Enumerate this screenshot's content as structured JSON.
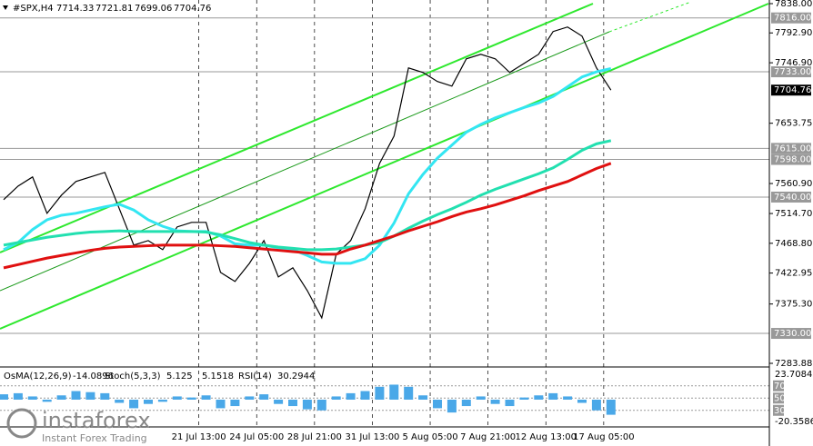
{
  "chart_data": {
    "type": "line",
    "symbol": "#SPX,H4",
    "ohlc": [
      7714.33,
      7721.81,
      7699.06,
      7704.76
    ],
    "ylim": [
      7283.88,
      7838.0
    ],
    "yticks": [
      {
        "value": 7838.0,
        "label": "7838.00"
      },
      {
        "value": 7792.9,
        "label": "7792.90"
      },
      {
        "value": 7746.9,
        "label": "7746.90"
      },
      {
        "value": 7653.75,
        "label": "7653.75"
      },
      {
        "value": 7560.9,
        "label": "7560.90"
      },
      {
        "value": 7514.7,
        "label": "7514.70"
      },
      {
        "value": 7468.8,
        "label": "7468.80"
      },
      {
        "value": 7422.95,
        "label": "7422.95"
      },
      {
        "value": 7375.3,
        "label": "7375.30"
      },
      {
        "value": 7283.88,
        "label": "7283.88"
      }
    ],
    "levels": [
      {
        "value": 7816.0,
        "label": "7816.00"
      },
      {
        "value": 7733.0,
        "label": "7733.00"
      },
      {
        "value": 7615.0,
        "label": "7615.00"
      },
      {
        "value": 7598.0,
        "label": "7598.00"
      },
      {
        "value": 7540.0,
        "label": "7540.00"
      },
      {
        "value": 7330.0,
        "label": "7330.00"
      }
    ],
    "xticks": [
      {
        "value": 13.5,
        "label": "21 Jul 13:00"
      },
      {
        "value": 17.5,
        "label": "24 Jul 05:00"
      },
      {
        "value": 21.5,
        "label": "28 Jul 21:00"
      },
      {
        "value": 25.5,
        "label": "31 Jul 13:00"
      },
      {
        "value": 29.5,
        "label": "5 Aug 05:00"
      },
      {
        "value": 33.5,
        "label": "7 Aug 21:00"
      },
      {
        "value": 37.5,
        "label": "12 Aug 13:00"
      },
      {
        "value": 41.5,
        "label": "17 Aug 05:00"
      }
    ],
    "series": [
      {
        "color": "#000000",
        "values": [
          7536,
          7557,
          7571,
          7515,
          7543,
          7564,
          7571,
          7578,
          7522,
          7466,
          7473,
          7459,
          7494,
          7501,
          7501,
          7424,
          7410,
          7438,
          7473,
          7417,
          7431,
          7396,
          7354,
          7452,
          7473,
          7522,
          7592,
          7634,
          7739,
          7732,
          7718,
          7711,
          7753,
          7760,
          7753,
          7732,
          7746,
          7760,
          7795,
          7802,
          7788,
          7739,
          7704.76
        ]
      },
      {
        "color": "#33e6f2",
        "values": [
          7459,
          7470,
          7490,
          7505,
          7512,
          7515,
          7520,
          7525,
          7529,
          7520,
          7505,
          7495,
          7488,
          7487,
          7487,
          7480,
          7468,
          7466,
          7466,
          7462,
          7459,
          7450,
          7440,
          7438,
          7438,
          7445,
          7466,
          7500,
          7545,
          7575,
          7600,
          7620,
          7640,
          7652,
          7662,
          7670,
          7678,
          7685,
          7695,
          7710,
          7725,
          7733,
          7738
        ]
      },
      {
        "color": "#22e0b0",
        "values": [
          7466,
          7470,
          7474,
          7478,
          7481,
          7484,
          7486,
          7487,
          7488,
          7487,
          7487,
          7487,
          7487,
          7487,
          7486,
          7482,
          7476,
          7470,
          7466,
          7463,
          7461,
          7459,
          7459,
          7460,
          7463,
          7466,
          7470,
          7480,
          7492,
          7503,
          7513,
          7522,
          7532,
          7543,
          7552,
          7560,
          7568,
          7576,
          7585,
          7598,
          7612,
          7622,
          7627
        ]
      },
      {
        "color": "#e01010",
        "values": [
          7431,
          7436,
          7441,
          7446,
          7450,
          7454,
          7458,
          7461,
          7463,
          7464,
          7465,
          7466,
          7466,
          7466,
          7466,
          7465,
          7464,
          7462,
          7460,
          7458,
          7456,
          7454,
          7452,
          7452,
          7460,
          7466,
          7473,
          7480,
          7488,
          7495,
          7502,
          7510,
          7517,
          7522,
          7528,
          7535,
          7542,
          7550,
          7557,
          7564,
          7574,
          7584,
          7592
        ]
      }
    ],
    "oscillator": {
      "osma_label": "OsMA(12,26,9)",
      "osma_value": -14.0896,
      "stoch_label": "Stoch(5,3,3)",
      "stoch_values": [
        5.125,
        5.1518
      ],
      "rsi_label": "RSI(14)",
      "rsi_value": 30.2944,
      "ylim": [
        -20.3586,
        23.7084
      ],
      "yticks": [
        {
          "value": 23.7084,
          "label": "23.7084"
        },
        {
          "value": -20.3586,
          "label": "-20.3586"
        }
      ],
      "rsi_ylim": [
        0,
        100
      ],
      "rsi_ticks": [
        70,
        50,
        30
      ],
      "color": "#4aa8e8",
      "values": [
        5,
        6,
        3,
        -2,
        4,
        8,
        7,
        6,
        -3,
        -8,
        -4,
        -2,
        3,
        2,
        4,
        -8,
        -6,
        3,
        5,
        -4,
        -6,
        -9,
        -10,
        3,
        6,
        8,
        12,
        14,
        12,
        4,
        -8,
        -12,
        -6,
        3,
        -4,
        -6,
        2,
        4,
        6,
        3,
        -3,
        -10,
        -14.0896
      ]
    },
    "logo": {
      "name": "instaforex",
      "tagline": "Instant Forex Trading"
    }
  }
}
